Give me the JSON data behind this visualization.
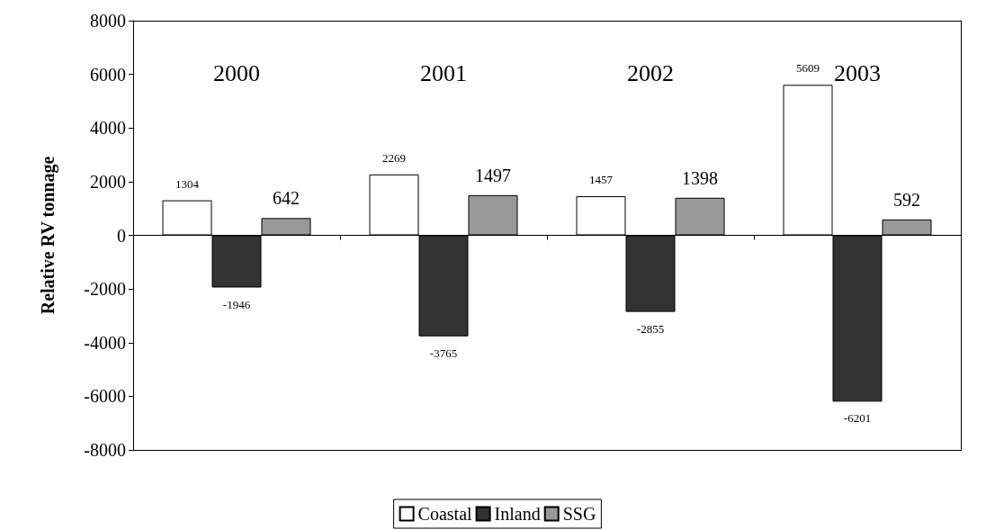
{
  "chart_data": {
    "type": "bar",
    "ylabel": "Relative RV tonnage",
    "categories": [
      "2000",
      "2001",
      "2002",
      "2003"
    ],
    "series": [
      {
        "name": "Coastal",
        "color": "#ffffff",
        "values": [
          1304,
          2269,
          1457,
          5609
        ]
      },
      {
        "name": "Inland",
        "color": "#333333",
        "values": [
          -1946,
          -3765,
          -2855,
          -6201
        ]
      },
      {
        "name": "SSG",
        "color": "#999999",
        "values": [
          642,
          1497,
          1398,
          592
        ]
      }
    ],
    "ylim": [
      -8000,
      8000
    ],
    "yticks": [
      -8000,
      -6000,
      -4000,
      -2000,
      0,
      2000,
      4000,
      6000,
      8000
    ],
    "legend": "bottom",
    "data_labels": true
  }
}
